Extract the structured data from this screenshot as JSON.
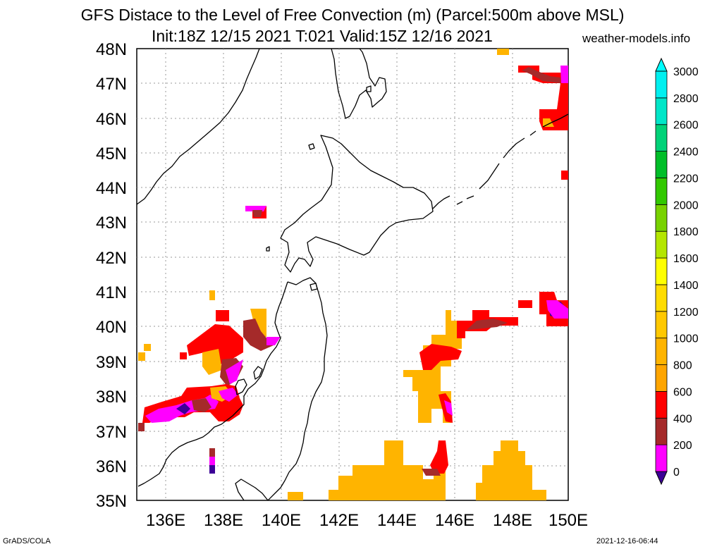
{
  "header": {
    "title_line1": "GFS Distace to the Level of Free Convection (m) (Parcel:500m above MSL)",
    "title_line2": "Init:18Z 12/15 2021 T:021 Valid:15Z 12/16 2021",
    "site": "weather-models.info"
  },
  "footer": {
    "left": "GrADS/COLA",
    "right": "2021-12-16-06:44"
  },
  "map": {
    "lat_labels": [
      "35N",
      "36N",
      "37N",
      "38N",
      "39N",
      "40N",
      "41N",
      "42N",
      "43N",
      "44N",
      "45N",
      "46N",
      "47N",
      "48N"
    ],
    "lon_labels": [
      "136E",
      "138E",
      "140E",
      "142E",
      "144E",
      "146E",
      "148E",
      "150E"
    ]
  },
  "colorbar": {
    "levels": [
      "0",
      "200",
      "400",
      "600",
      "800",
      "1000",
      "1200",
      "1400",
      "1600",
      "1800",
      "2000",
      "2200",
      "2400",
      "2600",
      "2800",
      "3000"
    ],
    "colors": [
      "#3c0096",
      "#ff00ff",
      "#a52a2a",
      "#ff0000",
      "#ffa500",
      "#ffb400",
      "#ffc800",
      "#ffdc00",
      "#ffff00",
      "#b4e600",
      "#78d200",
      "#32c800",
      "#00be28",
      "#00d278",
      "#00e6c8",
      "#00f0f0",
      "#00ffff"
    ]
  },
  "legend_colors": {
    "purple": "#3c0096",
    "magenta": "#ff00ff",
    "brown": "#a52a2a",
    "red": "#ff0000",
    "orange": "#ffb400"
  }
}
